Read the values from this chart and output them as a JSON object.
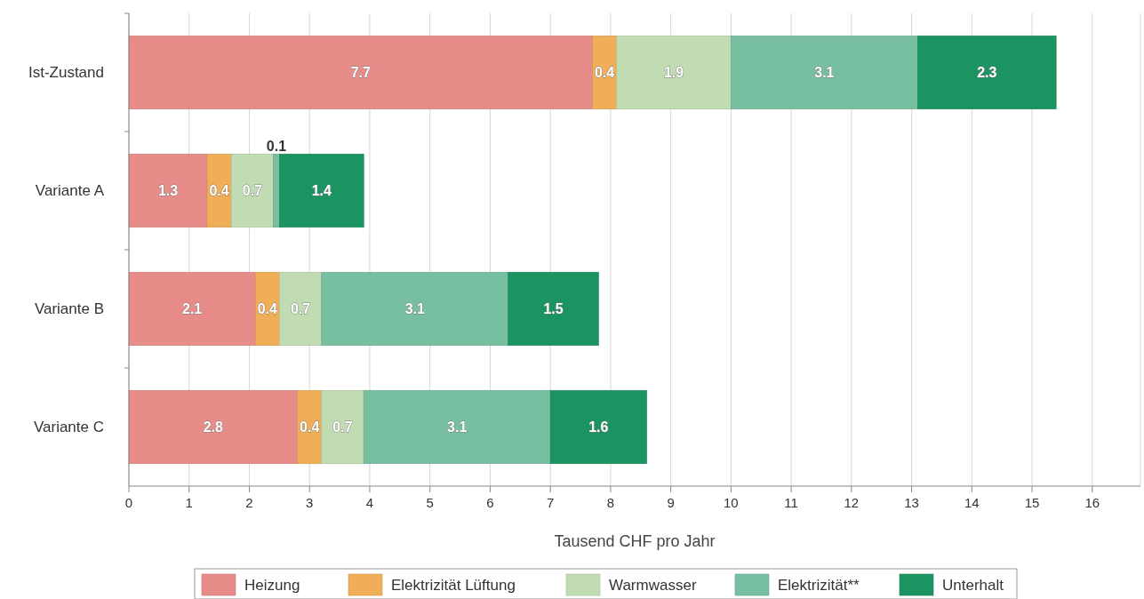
{
  "chart_data": {
    "type": "bar",
    "orientation": "horizontal",
    "stacked": true,
    "categories": [
      "Ist-Zustand",
      "Variante A",
      "Variante B",
      "Variante C"
    ],
    "series": [
      {
        "name": "Heizung",
        "color": "#e88c8a",
        "values": [
          7.7,
          1.3,
          2.1,
          2.8
        ]
      },
      {
        "name": "Elektrizität Lüftung",
        "color": "#f0ae58",
        "values": [
          0.4,
          0.4,
          0.4,
          0.4
        ]
      },
      {
        "name": "Warmwasser",
        "color": "#c1dcb2",
        "values": [
          1.9,
          0.7,
          0.7,
          0.7
        ]
      },
      {
        "name": "Elektrizität**",
        "color": "#77bfa0",
        "values": [
          3.1,
          0.1,
          3.1,
          3.1
        ]
      },
      {
        "name": "Unterhalt",
        "color": "#1b9462",
        "values": [
          2.3,
          1.4,
          1.5,
          1.6
        ]
      }
    ],
    "xlabel": "Tausend CHF pro Jahr",
    "xlim": [
      0,
      16.8
    ],
    "xticks": [
      0,
      1,
      2,
      3,
      4,
      5,
      6,
      7,
      8,
      9,
      10,
      11,
      12,
      13,
      14,
      15,
      16
    ],
    "grid": "x",
    "legend": "bottom",
    "data_labels": true
  }
}
